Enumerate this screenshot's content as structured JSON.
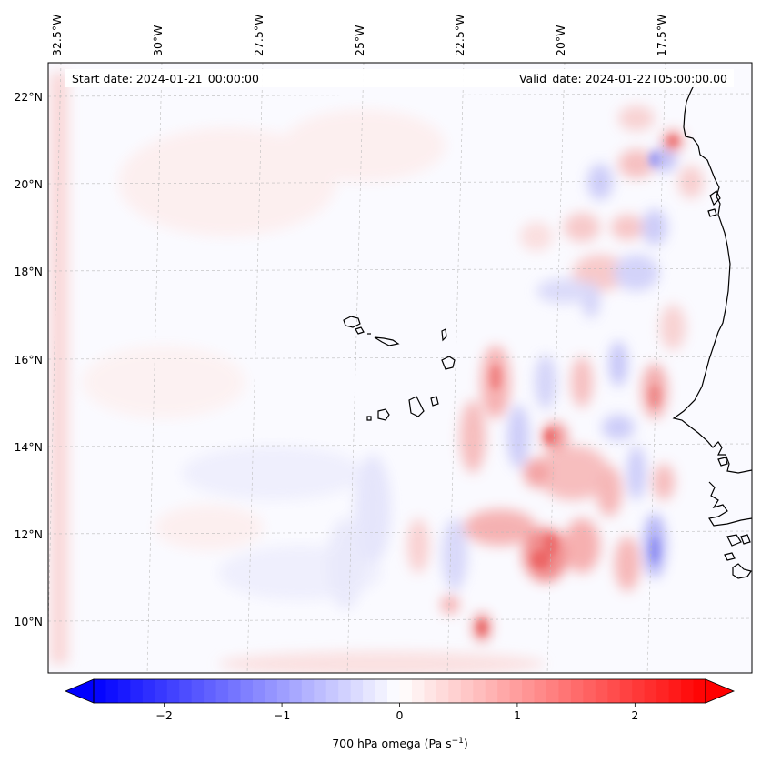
{
  "header": {
    "start_date": "Start date: 2024-01-21_00:00:00",
    "valid_date": "Valid_date: 2024-01-22T05:00:00.00"
  },
  "axes": {
    "lon_labels": [
      "32.5°W",
      "30°W",
      "27.5°W",
      "25°W",
      "22.5°W",
      "20°W",
      "17.5°W"
    ],
    "lat_labels": [
      "22°N",
      "20°N",
      "18°N",
      "16°N",
      "14°N",
      "12°N",
      "10°N"
    ]
  },
  "colorbar": {
    "label_main": "700 hPa omega (Pa s",
    "label_exp": "−1",
    "label_close": ")",
    "ticks": [
      "−2",
      "−1",
      "0",
      "1",
      "2"
    ],
    "min": -2.6,
    "max": 2.6,
    "tick_values": [
      -2,
      -1,
      0,
      1,
      2
    ],
    "negative_color": "#0000ff",
    "neutral_color": "#ffffff",
    "positive_color": "#ff0000"
  },
  "colors": {
    "coastline": "#000000",
    "gridline": "#bbbbbb",
    "frame": "#000000"
  }
}
